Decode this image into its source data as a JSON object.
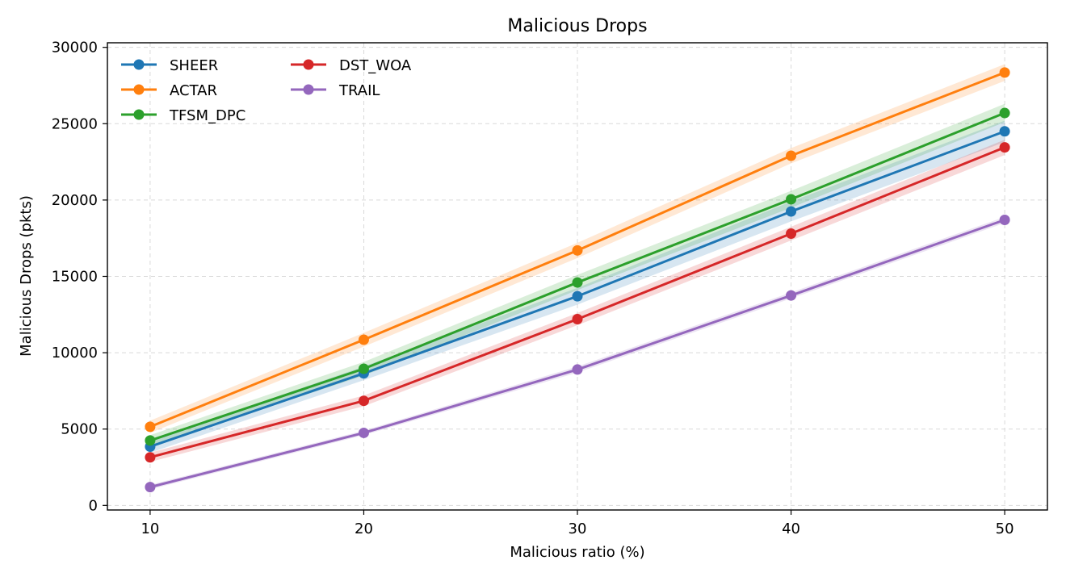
{
  "chart_data": {
    "type": "line",
    "title": "Malicious Drops",
    "xlabel": "Malicious ratio (%)",
    "ylabel": "Malicious Drops (pkts)",
    "x": [
      10,
      20,
      30,
      40,
      50
    ],
    "xlim": [
      8,
      52
    ],
    "ylim": [
      -300,
      30300
    ],
    "xticks": [
      "10",
      "20",
      "30",
      "40",
      "50"
    ],
    "yticks": [
      "0",
      "5000",
      "10000",
      "15000",
      "20000",
      "25000",
      "30000"
    ],
    "grid": true,
    "legend_position": "top-left",
    "series": [
      {
        "name": "SHEER",
        "color": "#1f77b4",
        "values": [
          3850,
          8650,
          13700,
          19250,
          24500
        ],
        "band": [
          400,
          450,
          550,
          650,
          700
        ]
      },
      {
        "name": "ACTAR",
        "color": "#ff7f0e",
        "values": [
          5150,
          10850,
          16700,
          22900,
          28350
        ],
        "band": [
          400,
          450,
          500,
          500,
          550
        ]
      },
      {
        "name": "TFSM_DPC",
        "color": "#2ca02c",
        "values": [
          4250,
          8950,
          14600,
          20050,
          25700
        ],
        "band": [
          350,
          450,
          500,
          550,
          600
        ]
      },
      {
        "name": "DST_WOA",
        "color": "#d62728",
        "values": [
          3150,
          6850,
          12200,
          17800,
          23450
        ],
        "band": [
          300,
          350,
          400,
          450,
          500
        ]
      },
      {
        "name": "TRAIL",
        "color": "#9467bd",
        "values": [
          1200,
          4750,
          8900,
          13750,
          18700
        ],
        "band": [
          150,
          150,
          200,
          200,
          200
        ]
      }
    ]
  }
}
